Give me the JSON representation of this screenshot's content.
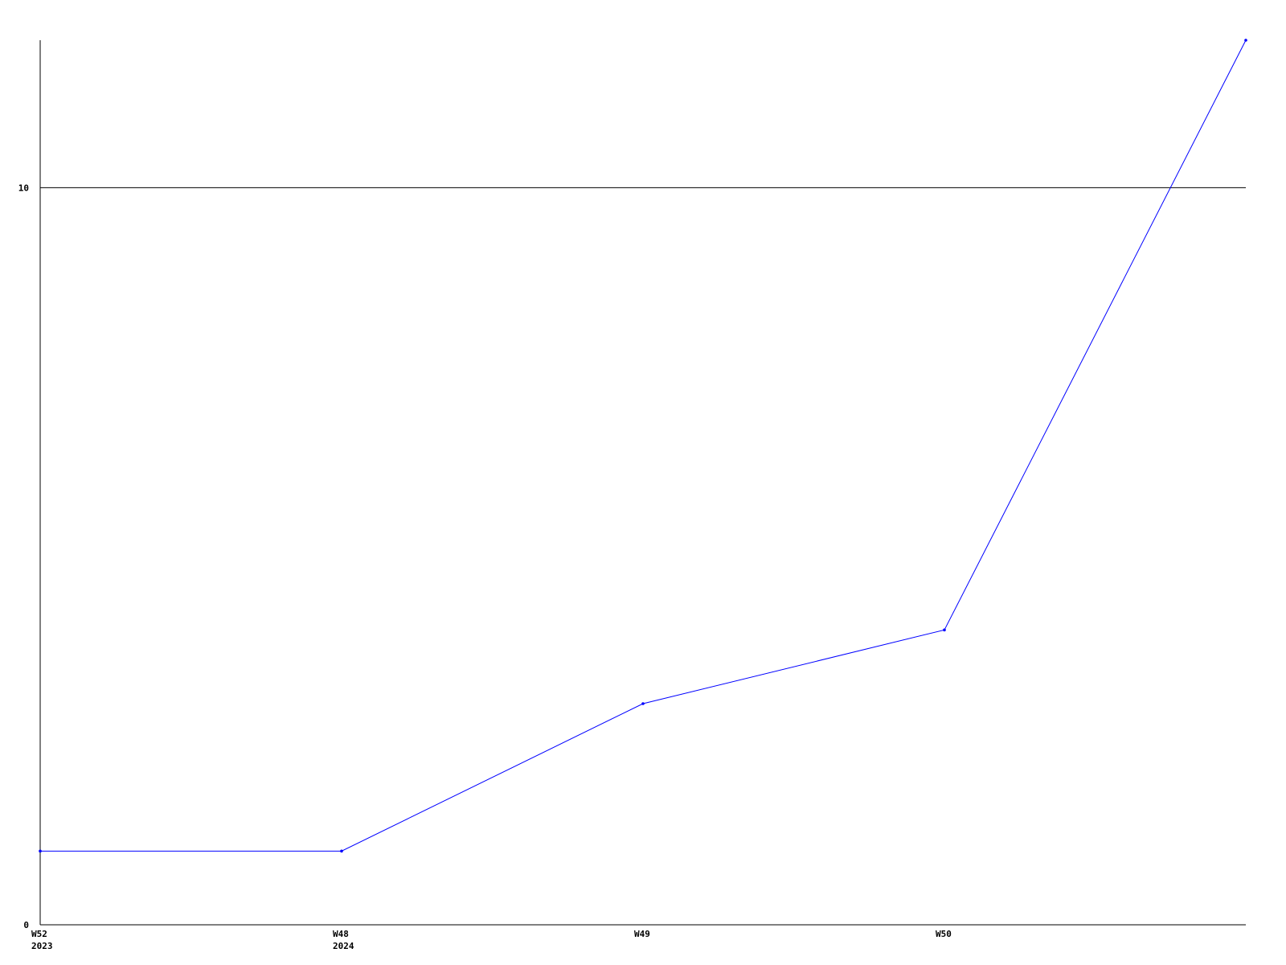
{
  "chart_data": {
    "type": "line",
    "categories": [
      "W52\n2023",
      "W48\n2024",
      "W49",
      "W50",
      ""
    ],
    "x_tick_labels": [
      {
        "week": "W52",
        "year": "2023"
      },
      {
        "week": "W48",
        "year": "2024"
      },
      {
        "week": "W49",
        "year": ""
      },
      {
        "week": "W50",
        "year": ""
      }
    ],
    "series": [
      {
        "values": [
          1,
          1,
          3,
          4,
          12
        ],
        "color": "#0000ff"
      }
    ],
    "y_ticks": [
      "0",
      "10"
    ],
    "ylim": [
      0,
      12
    ],
    "grid": "horizontal line at 10",
    "axis_color": "#000000",
    "title": "",
    "xlabel": "",
    "ylabel": ""
  }
}
